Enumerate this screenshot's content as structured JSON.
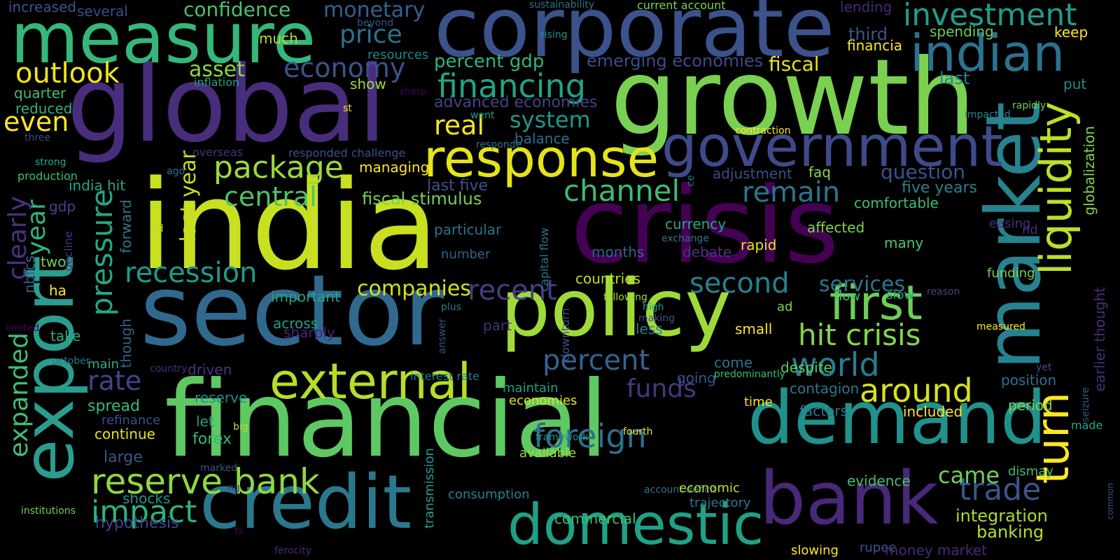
{
  "words": [
    {
      "text": "india",
      "color": "#c8e020"
    },
    {
      "text": "global",
      "color": "#472d7b"
    },
    {
      "text": "growth",
      "color": "#7ad151"
    },
    {
      "text": "crisis",
      "color": "#440154"
    },
    {
      "text": "financial",
      "color": "#5ec962"
    },
    {
      "text": "sector",
      "color": "#31688e"
    },
    {
      "text": "corporate",
      "color": "#3b528b"
    },
    {
      "text": "market",
      "color": "#26828e"
    },
    {
      "text": "measure",
      "color": "#35b779"
    },
    {
      "text": "policy",
      "color": "#a0da39"
    },
    {
      "text": "bank",
      "color": "#482878"
    },
    {
      "text": "credit",
      "color": "#2a788e"
    },
    {
      "text": "demand",
      "color": "#21918c"
    },
    {
      "text": "export",
      "color": "#2a9d8f"
    },
    {
      "text": "government",
      "color": "#3e4a89"
    },
    {
      "text": "domestic",
      "color": "#1fa187"
    },
    {
      "text": "indian",
      "color": "#2c728e"
    },
    {
      "text": "response",
      "color": "#e5e419"
    },
    {
      "text": "external",
      "color": "#b5de2b"
    },
    {
      "text": "first",
      "color": "#6ece58"
    },
    {
      "text": "liquidity",
      "color": "#bddf26"
    },
    {
      "text": "turn",
      "color": "#fde725"
    },
    {
      "text": "investment",
      "color": "#1f9e89"
    },
    {
      "text": "reserve bank",
      "color": "#90d743"
    },
    {
      "text": "foreign",
      "color": "#2e6e8e"
    },
    {
      "text": "pressure",
      "color": "#22a884"
    },
    {
      "text": "financing",
      "color": "#20a486"
    },
    {
      "text": "hit crisis",
      "color": "#84d44b"
    },
    {
      "text": "world",
      "color": "#287c8e"
    },
    {
      "text": "around",
      "color": "#d8e219"
    },
    {
      "text": "package",
      "color": "#9bd93c"
    },
    {
      "text": "channel",
      "color": "#3dbc74"
    },
    {
      "text": "economy",
      "color": "#3b528b"
    },
    {
      "text": "impact",
      "color": "#2db27d"
    },
    {
      "text": "percent",
      "color": "#33638d"
    },
    {
      "text": "second",
      "color": "#27808e"
    },
    {
      "text": "remain",
      "color": "#2c738e"
    },
    {
      "text": "recession",
      "color": "#1e9b8a"
    },
    {
      "text": "trade",
      "color": "#3a548c"
    },
    {
      "text": "expanded",
      "color": "#40bd72"
    },
    {
      "text": "year",
      "color": "#31b57b"
    },
    {
      "text": "clearly",
      "color": "#46327e"
    },
    {
      "text": "outlook",
      "color": "#f1e51d"
    },
    {
      "text": "monetary",
      "color": "#355f8d"
    },
    {
      "text": "confidence",
      "color": "#4ac16d"
    },
    {
      "text": "price",
      "color": "#2d708e"
    },
    {
      "text": "real",
      "color": "#f4e61e"
    },
    {
      "text": "central",
      "color": "#4cc26c"
    },
    {
      "text": "companies",
      "color": "#d0e11c"
    },
    {
      "text": "recent",
      "color": "#433e85"
    },
    {
      "text": "rate",
      "color": "#404688"
    },
    {
      "text": "system",
      "color": "#1f968b"
    },
    {
      "text": "funds",
      "color": "#453781"
    },
    {
      "text": "services",
      "color": "#2b758e"
    },
    {
      "text": "fiscal",
      "color": "#e2e418"
    },
    {
      "text": "asset",
      "color": "#8bd646"
    },
    {
      "text": "even",
      "color": "#fde725"
    },
    {
      "text": "question",
      "color": "#3b528b"
    },
    {
      "text": "came",
      "color": "#70cf57"
    },
    {
      "text": "last year",
      "color": "#c2df23"
    },
    {
      "text": "integration",
      "color": "#a8db34"
    },
    {
      "text": "banking",
      "color": "#bade28"
    },
    {
      "text": "percent gdp",
      "color": "#2fb47c"
    },
    {
      "text": "fiscal stimulus",
      "color": "#75d054"
    },
    {
      "text": "emerging economies",
      "color": "#3f4889"
    },
    {
      "text": "advanced economies",
      "color": "#414487"
    },
    {
      "text": "last five",
      "color": "#3c4f8a"
    },
    {
      "text": "india hit",
      "color": "#22a884"
    },
    {
      "text": "third",
      "color": "#39558c"
    },
    {
      "text": "spending",
      "color": "#6ccd5a"
    },
    {
      "text": "financia",
      "color": "#fde725"
    },
    {
      "text": "keep",
      "color": "#fde725"
    },
    {
      "text": "last",
      "color": "#26828e"
    },
    {
      "text": "put",
      "color": "#228b8d"
    },
    {
      "text": "five years",
      "color": "#25838e"
    },
    {
      "text": "comfortable",
      "color": "#3dbc74"
    },
    {
      "text": "currency",
      "color": "#22a785"
    },
    {
      "text": "affected",
      "color": "#7fd34e"
    },
    {
      "text": "many",
      "color": "#4ec36b"
    },
    {
      "text": "rapid",
      "color": "#e7e419"
    },
    {
      "text": "debate",
      "color": "#46337e"
    },
    {
      "text": "months",
      "color": "#33638d"
    },
    {
      "text": "adjustment",
      "color": "#3d4d8a"
    },
    {
      "text": "faq",
      "color": "#90d743"
    },
    {
      "text": "countries",
      "color": "#bddf26"
    },
    {
      "text": "balance",
      "color": "#2e6f8e"
    },
    {
      "text": "particular",
      "color": "#2c728e"
    },
    {
      "text": "number",
      "color": "#34618d"
    },
    {
      "text": "managing",
      "color": "#fde725"
    },
    {
      "text": "important",
      "color": "#22a884"
    },
    {
      "text": "across",
      "color": "#1f9f88"
    },
    {
      "text": "sharply",
      "color": "#482475"
    },
    {
      "text": "take",
      "color": "#2ab07f"
    },
    {
      "text": "main",
      "color": "#29af7f"
    },
    {
      "text": "driven",
      "color": "#453882"
    },
    {
      "text": "spread",
      "color": "#38b977"
    },
    {
      "text": "reserve",
      "color": "#228c8d"
    },
    {
      "text": "refinance",
      "color": "#3d4e8a"
    },
    {
      "text": "continue",
      "color": "#e2e418"
    },
    {
      "text": "let",
      "color": "#1f9e89"
    },
    {
      "text": "forex",
      "color": "#33b67a"
    },
    {
      "text": "large",
      "color": "#39568c"
    },
    {
      "text": "shocks",
      "color": "#1f958b"
    },
    {
      "text": "hypothesis",
      "color": "#3f4788"
    },
    {
      "text": "two",
      "color": "#75d054"
    },
    {
      "text": "gdp",
      "color": "#3f4889"
    },
    {
      "text": "nbfcs",
      "color": "#33628d"
    },
    {
      "text": "forward",
      "color": "#2a788e"
    },
    {
      "text": "though",
      "color": "#33638d"
    },
    {
      "text": "decline",
      "color": "#453581"
    },
    {
      "text": "ha",
      "color": "#fde725"
    },
    {
      "text": "quarter",
      "color": "#44bf70"
    },
    {
      "text": "reduced",
      "color": "#2db27d"
    },
    {
      "text": "several",
      "color": "#3e4a89"
    },
    {
      "text": "increased",
      "color": "#3b528b"
    },
    {
      "text": "much",
      "color": "#b5de2b"
    },
    {
      "text": "inflation",
      "color": "#1fa187"
    },
    {
      "text": "show",
      "color": "#9fda3a"
    },
    {
      "text": "resources",
      "color": "#25848e"
    },
    {
      "text": "beyond",
      "color": "#3b528b"
    },
    {
      "text": "sustainability",
      "color": "#2c728e"
    },
    {
      "text": "current account",
      "color": "#7ad151"
    },
    {
      "text": "lending",
      "color": "#482878"
    },
    {
      "text": "rising",
      "color": "#1f968b"
    },
    {
      "text": "st",
      "color": "#fde725"
    },
    {
      "text": "sharp",
      "color": "#440154"
    },
    {
      "text": "went",
      "color": "#1fa088"
    },
    {
      "text": "responde",
      "color": "#2c728e"
    },
    {
      "text": "responded challenge",
      "color": "#3c4f8a"
    },
    {
      "text": "overseas",
      "color": "#46337f"
    },
    {
      "text": "contraction",
      "color": "#fde725"
    },
    {
      "text": "impacted",
      "color": "#26828e"
    },
    {
      "text": "rapidly",
      "color": "#6ece58"
    },
    {
      "text": "three",
      "color": "#414487"
    },
    {
      "text": "strong",
      "color": "#22a884"
    },
    {
      "text": "production",
      "color": "#3dbc74"
    },
    {
      "text": "ago",
      "color": "#2c728e"
    },
    {
      "text": "ed",
      "color": "#b5de2b"
    },
    {
      "text": "ce",
      "color": "#2a788e"
    },
    {
      "text": "capital flow",
      "color": "#2c728e"
    },
    {
      "text": "downturn",
      "color": "#3b528b"
    },
    {
      "text": "exchange",
      "color": "#2c728e"
    },
    {
      "text": "high",
      "color": "#1f9e89"
    },
    {
      "text": "following",
      "color": "#a0da39"
    },
    {
      "text": "ad",
      "color": "#84d44b"
    },
    {
      "text": "flow",
      "color": "#44bf70"
    },
    {
      "text": "slow",
      "color": "#22a884"
    },
    {
      "text": "reason",
      "color": "#414487"
    },
    {
      "text": "easing",
      "color": "#472d7b"
    },
    {
      "text": "nd",
      "color": "#482878"
    },
    {
      "text": "funding",
      "color": "#7ad151"
    },
    {
      "text": "globalization",
      "color": "#84d44b"
    },
    {
      "text": "earlier thought",
      "color": "#472d7b"
    },
    {
      "text": "seizure",
      "color": "#3b528b"
    },
    {
      "text": "measured",
      "color": "#fde725"
    },
    {
      "text": "limited",
      "color": "#440154"
    },
    {
      "text": "october",
      "color": "#2c728e"
    },
    {
      "text": "country",
      "color": "#472d7b"
    },
    {
      "text": "plus",
      "color": "#2a788e"
    },
    {
      "text": "answer",
      "color": "#3b528b"
    },
    {
      "text": "part",
      "color": "#472d7b"
    },
    {
      "text": "making",
      "color": "#3b528b"
    },
    {
      "text": "less",
      "color": "#26828e"
    },
    {
      "text": "small",
      "color": "#fde725"
    },
    {
      "text": "going",
      "color": "#3b528b"
    },
    {
      "text": "come",
      "color": "#2c728e"
    },
    {
      "text": "predominantly",
      "color": "#3dbc74"
    },
    {
      "text": "despite",
      "color": "#5ec962"
    },
    {
      "text": "contagion",
      "color": "#2a788e"
    },
    {
      "text": "position",
      "color": "#2c728e"
    },
    {
      "text": "yet",
      "color": "#3b528b"
    },
    {
      "text": "maintain",
      "color": "#1fa187"
    },
    {
      "text": "economies",
      "color": "#e5e419"
    },
    {
      "text": "time",
      "color": "#fde725"
    },
    {
      "text": "factors",
      "color": "#2a788e"
    },
    {
      "text": "included",
      "color": "#fde725"
    },
    {
      "text": "period",
      "color": "#7ad151"
    },
    {
      "text": "made",
      "color": "#22a884"
    },
    {
      "text": "big",
      "color": "#b5de2b"
    },
    {
      "text": "framework",
      "color": "#21918c"
    },
    {
      "text": "fourth",
      "color": "#e5e419"
    },
    {
      "text": "available",
      "color": "#a0da39"
    },
    {
      "text": "marked",
      "color": "#3b528b"
    },
    {
      "text": "account deficit",
      "color": "#2c728e"
    },
    {
      "text": "economic",
      "color": "#bddf26"
    },
    {
      "text": "trajectory",
      "color": "#2a788e"
    },
    {
      "text": "evidence",
      "color": "#44bf70"
    },
    {
      "text": "dismay",
      "color": "#3dbc74"
    },
    {
      "text": "common",
      "color": "#3b528b"
    },
    {
      "text": "consumption",
      "color": "#26828e"
    },
    {
      "text": "commercial",
      "color": "#44bf70"
    },
    {
      "text": "institutions",
      "color": "#6ece58"
    },
    {
      "text": "ng",
      "color": "#472d7b"
    },
    {
      "text": "ts",
      "color": "#440154"
    },
    {
      "text": "transmission",
      "color": "#2a9d8f"
    },
    {
      "text": "ferocity",
      "color": "#482878"
    },
    {
      "text": "slowing",
      "color": "#fde725"
    },
    {
      "text": "rupee",
      "color": "#3b528b"
    },
    {
      "text": "money market",
      "color": "#482878"
    },
    {
      "text": "interest rate",
      "color": "#2a788e"
    }
  ]
}
